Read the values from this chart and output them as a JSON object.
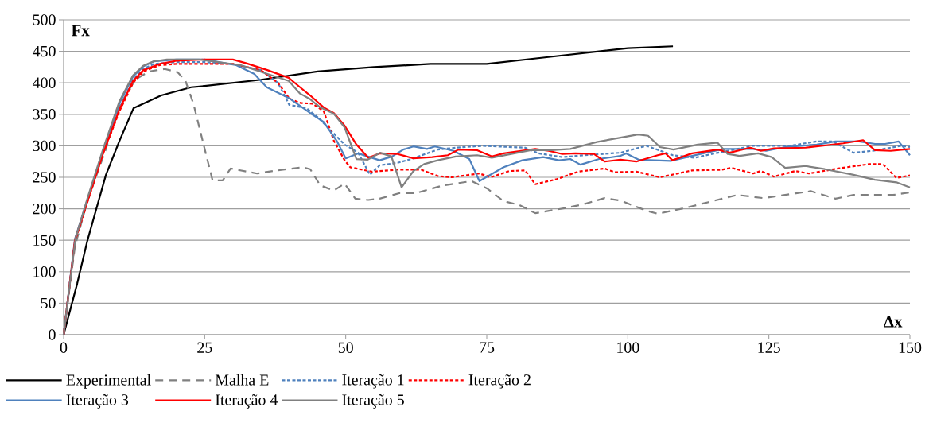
{
  "chart_data": {
    "type": "line",
    "xlabel": "Δx",
    "ylabel": "Fx",
    "xlim": [
      0,
      150
    ],
    "xticks": [
      0,
      25,
      50,
      75,
      100,
      125,
      150
    ],
    "ylim": [
      0,
      500
    ],
    "yticks": [
      0,
      50,
      100,
      150,
      200,
      250,
      300,
      350,
      400,
      450,
      500
    ],
    "grid": "y",
    "legend": "bottom",
    "marker": "none",
    "series": [
      {
        "name": "Experimental",
        "color": "#000000",
        "line_style": "solid",
        "x": [
          0,
          2.4,
          4.2,
          7.5,
          9.9,
          12.4,
          17.3,
          22.6,
          25,
          35,
          45,
          55,
          65,
          75,
          85,
          100,
          108
        ],
        "values": [
          0,
          81,
          149,
          254,
          308,
          360,
          380,
          393,
          395,
          405,
          418,
          425,
          430,
          430,
          440,
          455,
          458
        ]
      },
      {
        "name": "Malha E",
        "color": "#808080",
        "line_style": "dashed",
        "x": [
          0,
          2,
          4.2,
          7.5,
          9.9,
          12.7,
          15.1,
          17.9,
          20.2,
          21.6,
          23,
          25,
          26.4,
          28.2,
          29.6,
          34.3,
          37.1,
          42.3,
          43.7,
          45.5,
          47.9,
          49.8,
          51.7,
          54,
          56,
          59.6,
          62.5,
          67.2,
          72.3,
          75.1,
          78,
          80.8,
          83.6,
          88.8,
          92.1,
          95.9,
          98.7,
          103.3,
          105.3,
          110,
          119.4,
          124,
          132.5,
          136.8,
          140,
          147,
          150
        ],
        "values": [
          0,
          140,
          212,
          295,
          364,
          405,
          418,
          422,
          417,
          403,
          367,
          295,
          245,
          245,
          264,
          256,
          260,
          266,
          263,
          237,
          229,
          240,
          216,
          214,
          216,
          225,
          225,
          237,
          244,
          232,
          212,
          206,
          193,
          201,
          207,
          217,
          213,
          197,
          192,
          201,
          222,
          217,
          228,
          216,
          222,
          222,
          226
        ]
      },
      {
        "name": "Iteração 1",
        "color": "#4f81bd",
        "line_style": "dotted",
        "x": [
          0,
          2,
          4.2,
          7,
          9.9,
          12.3,
          14.1,
          16,
          20,
          25,
          30,
          35,
          38,
          40,
          43,
          45.1,
          49.8,
          52.2,
          54.3,
          56,
          59.2,
          61.6,
          66.3,
          69.5,
          74.3,
          81.8,
          84.2,
          88.4,
          92.1,
          98.7,
          103.3,
          108,
          111.8,
          116,
          122.2,
          128.7,
          133.5,
          136.3,
          140,
          143.4,
          148.5,
          150
        ],
        "values": [
          0,
          150,
          212,
          290,
          360,
          405,
          422,
          430,
          433,
          433,
          430,
          420,
          400,
          365,
          360,
          345,
          302,
          289,
          254,
          269,
          273,
          279,
          294,
          297,
          300,
          297,
          288,
          282,
          285,
          289,
          300,
          285,
          281,
          289,
          300,
          300,
          307,
          307,
          289,
          292,
          300,
          298
        ]
      },
      {
        "name": "Iteração 2",
        "color": "#ff0000",
        "line_style": "dotted",
        "x": [
          0,
          2,
          4.2,
          7,
          9.9,
          12.3,
          14.1,
          17,
          20,
          25,
          30,
          35,
          38,
          40,
          42,
          44.1,
          46.1,
          47.9,
          49.8,
          50.8,
          54.6,
          59.2,
          63.4,
          66.3,
          68.7,
          73.7,
          75.7,
          79,
          81.8,
          83.6,
          87.4,
          91.2,
          95.9,
          97.7,
          101.5,
          105.7,
          111.4,
          116.6,
          118.4,
          122.2,
          123.6,
          125.9,
          129.7,
          132.1,
          137.2,
          142.8,
          145.2,
          147.6,
          150
        ],
        "values": [
          0,
          148,
          210,
          288,
          355,
          400,
          418,
          428,
          430,
          430,
          430,
          420,
          400,
          375,
          368,
          367,
          355,
          308,
          277,
          266,
          259,
          262,
          262,
          252,
          250,
          256,
          250,
          260,
          261,
          239,
          247,
          259,
          264,
          258,
          259,
          250,
          261,
          262,
          265,
          256,
          260,
          251,
          260,
          256,
          264,
          271,
          271,
          249,
          253
        ]
      },
      {
        "name": "Iteração 3",
        "color": "#4f81bd",
        "line_style": "solid",
        "x": [
          0,
          2,
          4.2,
          7,
          9.9,
          12.3,
          14.1,
          16,
          20,
          25,
          30.6,
          33.8,
          36,
          39.9,
          43.7,
          46.1,
          48.4,
          50,
          52.2,
          56,
          58.2,
          60.2,
          62,
          64.4,
          65.8,
          69.1,
          71.9,
          73.7,
          78,
          81.3,
          85,
          87.8,
          89.8,
          91.6,
          94.9,
          98.7,
          99.7,
          101.9,
          107.6,
          113.8,
          117,
          122.2,
          124.5,
          127.9,
          133.5,
          136.8,
          141,
          143.8,
          145.6,
          148,
          150
        ],
        "values": [
          0,
          152,
          214,
          292,
          368,
          410,
          426,
          434,
          437,
          437,
          428,
          414,
          393,
          376,
          352,
          338,
          308,
          280,
          288,
          277,
          283,
          294,
          299,
          295,
          299,
          292,
          279,
          244,
          266,
          277,
          282,
          277,
          279,
          270,
          279,
          284,
          288,
          278,
          276,
          289,
          295,
          295,
          292,
          298,
          302,
          307,
          307,
          303,
          303,
          307,
          285
        ]
      },
      {
        "name": "Iteração 4",
        "color": "#ff0000",
        "line_style": "solid",
        "x": [
          0,
          2,
          4.2,
          7,
          9.9,
          12.3,
          14.1,
          17,
          20,
          25,
          30,
          32.4,
          36.2,
          39.9,
          41.9,
          43.7,
          46.1,
          47.9,
          49.8,
          51.9,
          54,
          56,
          59.2,
          62,
          65.3,
          68.1,
          70,
          73.3,
          75.9,
          78,
          83.6,
          86,
          88.4,
          90.7,
          94,
          95.9,
          98.7,
          101.5,
          105.3,
          106.7,
          107.9,
          111.4,
          116,
          118,
          121.7,
          123.6,
          125.9,
          131.5,
          138.2,
          141.7,
          143.8,
          146.6,
          150
        ],
        "values": [
          0,
          150,
          212,
          288,
          358,
          403,
          420,
          430,
          435,
          437,
          437,
          431,
          420,
          408,
          393,
          380,
          361,
          352,
          332,
          302,
          281,
          288,
          287,
          280,
          282,
          285,
          294,
          293,
          283,
          288,
          295,
          292,
          287,
          288,
          287,
          275,
          278,
          275,
          285,
          288,
          277,
          288,
          294,
          289,
          297,
          292,
          296,
          297,
          304,
          309,
          293,
          292,
          295
        ]
      },
      {
        "name": "Iteração 5",
        "color": "#808080",
        "line_style": "solid",
        "x": [
          0,
          2.1,
          4.2,
          7,
          9.9,
          12.3,
          14.1,
          15.9,
          18.3,
          24,
          31.4,
          39.9,
          41.9,
          43.7,
          45.5,
          47.9,
          49.8,
          51.9,
          53.9,
          56.1,
          58.1,
          59.9,
          62,
          63.9,
          66.3,
          69.5,
          73.3,
          75.9,
          79.9,
          82.8,
          86.4,
          89.8,
          94.5,
          98.7,
          101.8,
          103.6,
          105.7,
          108.1,
          112.4,
          115.9,
          117.7,
          119.8,
          123.1,
          125.5,
          127.9,
          131.5,
          134.9,
          140,
          143.8,
          147.6,
          150
        ],
        "values": [
          0,
          153,
          216,
          295,
          371,
          412,
          427,
          434,
          437,
          437,
          428,
          403,
          383,
          374,
          361,
          351,
          329,
          279,
          278,
          289,
          283,
          234,
          260,
          271,
          277,
          283,
          285,
          281,
          288,
          293,
          293,
          295,
          306,
          313,
          318,
          316,
          298,
          294,
          302,
          305,
          287,
          284,
          288,
          282,
          265,
          268,
          263,
          254,
          246,
          242,
          234
        ]
      }
    ]
  }
}
